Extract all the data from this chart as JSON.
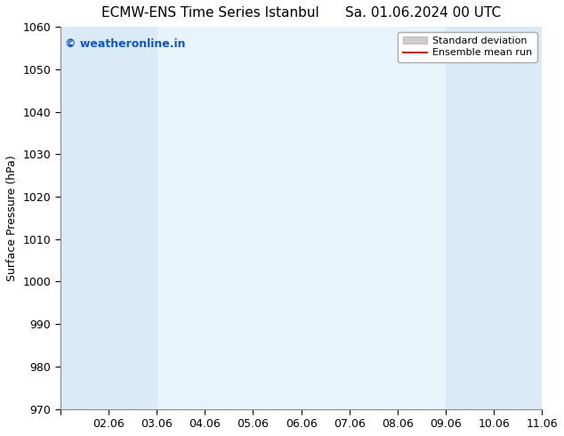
{
  "title": "ECMW-ENS Time Series Istanbul      Sa. 01.06.2024 00 UTC",
  "ylabel": "Surface Pressure (hPa)",
  "xlim": [
    0,
    10
  ],
  "ylim": [
    970,
    1060
  ],
  "yticks": [
    970,
    980,
    990,
    1000,
    1010,
    1020,
    1030,
    1040,
    1050,
    1060
  ],
  "xtick_labels": [
    "",
    "02.06",
    "03.06",
    "04.06",
    "05.06",
    "06.06",
    "07.06",
    "08.06",
    "09.06",
    "10.06",
    "11.06"
  ],
  "xtick_positions": [
    0,
    1,
    2,
    3,
    4,
    5,
    6,
    7,
    8,
    9,
    10
  ],
  "shaded_bands": [
    {
      "x_start": 0,
      "x_end": 2,
      "color": "#daeaf7"
    },
    {
      "x_start": 8,
      "x_end": 10,
      "color": "#daeaf7"
    }
  ],
  "plot_bg_color": "#e8f4fb",
  "watermark_text": "© weatheronline.in",
  "watermark_color": "#1155cc",
  "watermark_fontsize": 9,
  "legend_items": [
    {
      "label": "Standard deviation",
      "color": "#cccccc",
      "type": "patch"
    },
    {
      "label": "Ensemble mean run",
      "color": "#cc2200",
      "type": "line"
    }
  ],
  "bg_color": "#ffffff",
  "title_fontsize": 11,
  "axis_fontsize": 9,
  "tick_fontsize": 9
}
